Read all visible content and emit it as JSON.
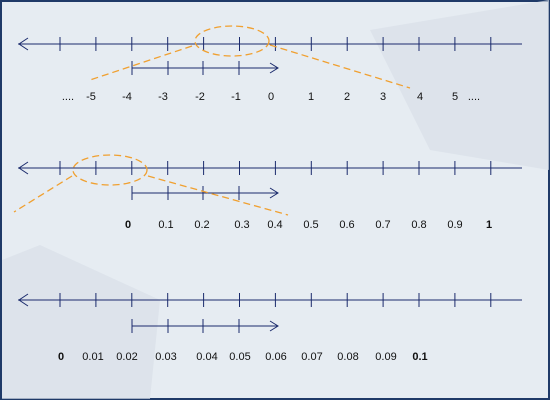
{
  "number_lines": [
    {
      "labels": [
        "....",
        "-5",
        "-4",
        "-3",
        "-2",
        "-1",
        "0",
        "1",
        "2",
        "3",
        "4",
        "5",
        "...."
      ]
    },
    {
      "labels": [
        "0",
        "0.1",
        "0.2",
        "0.3",
        "0.4",
        "0.5",
        "0.6",
        "0.7",
        "0.8",
        "0.9",
        "1"
      ]
    },
    {
      "labels": [
        "0",
        "0.01",
        "0.02",
        "0.03",
        "0.04",
        "0.05",
        "0.06",
        "0.07",
        "0.08",
        "0.09",
        "0.1"
      ]
    }
  ]
}
